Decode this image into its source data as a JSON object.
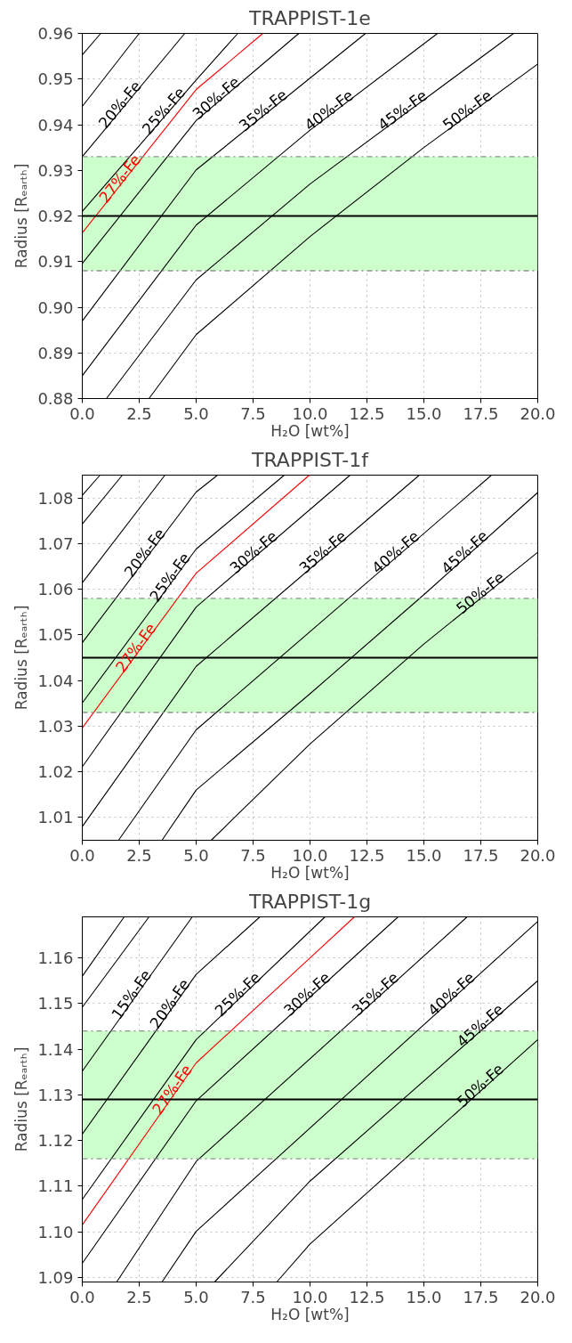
{
  "chart_data": [
    {
      "type": "line",
      "title": "TRAPPIST-1e",
      "xlabel": "H₂O [wt%]",
      "ylabel": "Radius [Rₑₐᵣₜₕ]",
      "xlim": [
        0,
        20
      ],
      "ylim": [
        0.88,
        0.96
      ],
      "xticks": [
        {
          "value": 0,
          "label": "0.0"
        },
        2.5,
        {
          "value": 5,
          "label": "5.0"
        },
        7.5,
        {
          "value": 10,
          "label": "10.0"
        },
        12.5,
        {
          "value": 15,
          "label": "15.0"
        },
        17.5,
        {
          "value": 20,
          "label": "20.0"
        }
      ],
      "yticks": [
        0.88,
        0.89,
        {
          "value": 0.9,
          "label": "0.90"
        },
        0.91,
        0.92,
        0.93,
        0.94,
        0.95,
        0.96
      ],
      "grid": true,
      "marker": "none",
      "line_style": "solid",
      "bands": [
        {
          "axis": "y",
          "from": 0.908,
          "to": 0.933,
          "color": "#ccffcc"
        }
      ],
      "ref_lines": [
        {
          "axis": "y",
          "value": 0.92,
          "color": "#000000"
        },
        {
          "axis": "y",
          "value": 0.908,
          "color": "#909090",
          "line_style": "dashdot"
        },
        {
          "axis": "y",
          "value": 0.933,
          "color": "#909090",
          "line_style": "dashdot"
        }
      ],
      "series": [
        {
          "color": "#000000",
          "x": [
            0,
            0.81
          ],
          "values": [
            0.9553,
            0.96
          ]
        },
        {
          "color": "#000000",
          "x": [
            0,
            2.5
          ],
          "values": [
            0.944,
            0.96
          ]
        },
        {
          "name": "20%-Fe",
          "color": "#000000",
          "x": [
            0,
            4.5
          ],
          "values": [
            0.933,
            0.96
          ]
        },
        {
          "name": "25%-Fe",
          "color": "#000000",
          "x": [
            0,
            5,
            6.83
          ],
          "values": [
            0.921,
            0.9498,
            0.96
          ]
        },
        {
          "name": "27%-Fe",
          "color": "#ff0000",
          "x": [
            0,
            5,
            7.93
          ],
          "values": [
            0.9163,
            0.9477,
            0.96
          ]
        },
        {
          "name": "30%-Fe",
          "color": "#000000",
          "x": [
            0,
            5,
            9.51
          ],
          "values": [
            0.9096,
            0.9409,
            0.96
          ]
        },
        {
          "name": "35%-Fe",
          "color": "#000000",
          "x": [
            0,
            5,
            12.44
          ],
          "values": [
            0.897,
            0.9301,
            0.96
          ]
        },
        {
          "name": "40%-Fe",
          "color": "#000000",
          "x": [
            0,
            5,
            10,
            15.6
          ],
          "values": [
            0.885,
            0.918,
            0.9388,
            0.96
          ]
        },
        {
          "name": "45%-Fe",
          "color": "#000000",
          "x": [
            1.06,
            5,
            10,
            18.94
          ],
          "values": [
            0.88,
            0.906,
            0.927,
            0.96
          ]
        },
        {
          "name": "50%-Fe",
          "color": "#000000",
          "x": [
            2.93,
            5,
            10,
            15,
            20
          ],
          "values": [
            0.88,
            0.894,
            0.9155,
            0.935,
            0.9533
          ]
        }
      ]
    },
    {
      "type": "line",
      "title": "TRAPPIST-1f",
      "xlabel": "H₂O [wt%]",
      "ylabel": "Radius [Rₑₐᵣₜₕ]",
      "xlim": [
        0,
        20
      ],
      "ylim": [
        1.005,
        1.085
      ],
      "xticks": [
        {
          "value": 0,
          "label": "0.0"
        },
        2.5,
        {
          "value": 5,
          "label": "5.0"
        },
        7.5,
        {
          "value": 10,
          "label": "10.0"
        },
        12.5,
        {
          "value": 15,
          "label": "15.0"
        },
        17.5,
        {
          "value": 20,
          "label": "20.0"
        }
      ],
      "yticks": [
        1.01,
        1.02,
        1.03,
        1.04,
        1.05,
        1.06,
        1.07,
        1.08
      ],
      "grid": true,
      "marker": "none",
      "line_style": "solid",
      "bands": [
        {
          "axis": "y",
          "from": 1.033,
          "to": 1.058,
          "color": "#ccffcc"
        }
      ],
      "ref_lines": [
        {
          "axis": "y",
          "value": 1.045,
          "color": "#000000"
        },
        {
          "axis": "y",
          "value": 1.033,
          "color": "#909090",
          "line_style": "dashdot"
        },
        {
          "axis": "y",
          "value": 1.058,
          "color": "#909090",
          "line_style": "dashdot"
        }
      ],
      "series": [
        {
          "color": "#000000",
          "x": [
            0,
            0.78
          ],
          "values": [
            1.0806,
            1.085
          ]
        },
        {
          "color": "#000000",
          "x": [
            0,
            1.76
          ],
          "values": [
            1.0743,
            1.085
          ]
        },
        {
          "color": "#000000",
          "x": [
            0,
            3.63
          ],
          "values": [
            1.0614,
            1.085
          ]
        },
        {
          "name": "20%-Fe",
          "color": "#000000",
          "x": [
            0,
            5,
            5.94
          ],
          "values": [
            1.0483,
            1.0813,
            1.085
          ]
        },
        {
          "name": "25%-Fe",
          "color": "#000000",
          "x": [
            0,
            5,
            8.87
          ],
          "values": [
            1.0351,
            1.0688,
            1.085
          ]
        },
        {
          "name": "27%-Fe",
          "color": "#ff0000",
          "x": [
            0,
            5,
            9.97
          ],
          "values": [
            1.0296,
            1.0635,
            1.085
          ]
        },
        {
          "name": "30%-Fe",
          "color": "#000000",
          "x": [
            0,
            5,
            11.76
          ],
          "values": [
            1.0211,
            1.0561,
            1.085
          ]
        },
        {
          "name": "35%-Fe",
          "color": "#000000",
          "x": [
            0,
            5,
            14.8
          ],
          "values": [
            1.008,
            1.0431,
            1.085
          ]
        },
        {
          "name": "40%-Fe",
          "color": "#000000",
          "x": [
            1.59,
            5,
            17.97
          ],
          "values": [
            1.005,
            1.0292,
            1.085
          ]
        },
        {
          "name": "45%-Fe",
          "color": "#000000",
          "x": [
            3.5,
            5,
            10,
            15,
            20
          ],
          "values": [
            1.005,
            1.016,
            1.0371,
            1.0588,
            1.0812
          ]
        },
        {
          "name": "50%-Fe",
          "color": "#000000",
          "x": [
            5.66,
            10,
            15,
            20
          ],
          "values": [
            1.005,
            1.0261,
            1.048,
            1.0681
          ]
        }
      ]
    },
    {
      "type": "line",
      "title": "TRAPPIST-1g",
      "xlabel": "H₂O [wt%]",
      "ylabel": "Radius [Rₑₐᵣₜₕ]",
      "xlim": [
        0,
        20
      ],
      "ylim": [
        1.089,
        1.169
      ],
      "xticks": [
        {
          "value": 0,
          "label": "0.0"
        },
        2.5,
        {
          "value": 5,
          "label": "5.0"
        },
        7.5,
        {
          "value": 10,
          "label": "10.0"
        },
        12.5,
        {
          "value": 15,
          "label": "15.0"
        },
        17.5,
        {
          "value": 20,
          "label": "20.0"
        }
      ],
      "yticks": [
        1.09,
        {
          "value": 1.1,
          "label": "1.10"
        },
        1.11,
        1.12,
        1.13,
        1.14,
        1.15,
        1.16
      ],
      "grid": true,
      "marker": "none",
      "line_style": "solid",
      "bands": [
        {
          "axis": "y",
          "from": 1.116,
          "to": 1.144,
          "color": "#ccffcc"
        }
      ],
      "ref_lines": [
        {
          "axis": "y",
          "value": 1.129,
          "color": "#000000"
        },
        {
          "axis": "y",
          "value": 1.116,
          "color": "#909090",
          "line_style": "dashdot"
        },
        {
          "axis": "y",
          "value": 1.144,
          "color": "#909090",
          "line_style": "dashdot"
        }
      ],
      "series": [
        {
          "color": "#000000",
          "x": [
            0,
            1.84
          ],
          "values": [
            1.156,
            1.169
          ]
        },
        {
          "color": "#000000",
          "x": [
            0,
            2.93
          ],
          "values": [
            1.1492,
            1.169
          ]
        },
        {
          "name": "15%-Fe",
          "color": "#000000",
          "x": [
            0,
            4.83
          ],
          "values": [
            1.1352,
            1.169
          ]
        },
        {
          "name": "20%-Fe",
          "color": "#000000",
          "x": [
            0,
            5,
            7.8
          ],
          "values": [
            1.1214,
            1.1564,
            1.169
          ]
        },
        {
          "name": "25%-Fe",
          "color": "#000000",
          "x": [
            0,
            5,
            10.66
          ],
          "values": [
            1.1071,
            1.1421,
            1.169
          ]
        },
        {
          "name": "27%-Fe",
          "color": "#ff0000",
          "x": [
            0,
            5,
            10,
            11.95
          ],
          "values": [
            1.1015,
            1.137,
            1.16,
            1.169
          ]
        },
        {
          "name": "30%-Fe",
          "color": "#000000",
          "x": [
            0,
            5,
            13.87
          ],
          "values": [
            1.0931,
            1.1287,
            1.169
          ]
        },
        {
          "name": "35%-Fe",
          "color": "#000000",
          "x": [
            1.51,
            5,
            16.9
          ],
          "values": [
            1.089,
            1.1154,
            1.169
          ]
        },
        {
          "name": "40%-Fe",
          "color": "#000000",
          "x": [
            3.5,
            5,
            20
          ],
          "values": [
            1.089,
            1.1001,
            1.168
          ]
        },
        {
          "name": "45%-Fe",
          "color": "#000000",
          "x": [
            5.81,
            10,
            20
          ],
          "values": [
            1.089,
            1.1111,
            1.155
          ]
        },
        {
          "name": "50%-Fe",
          "color": "#000000",
          "x": [
            8.54,
            10,
            20
          ],
          "values": [
            1.089,
            1.0973,
            1.1421
          ]
        }
      ]
    }
  ]
}
